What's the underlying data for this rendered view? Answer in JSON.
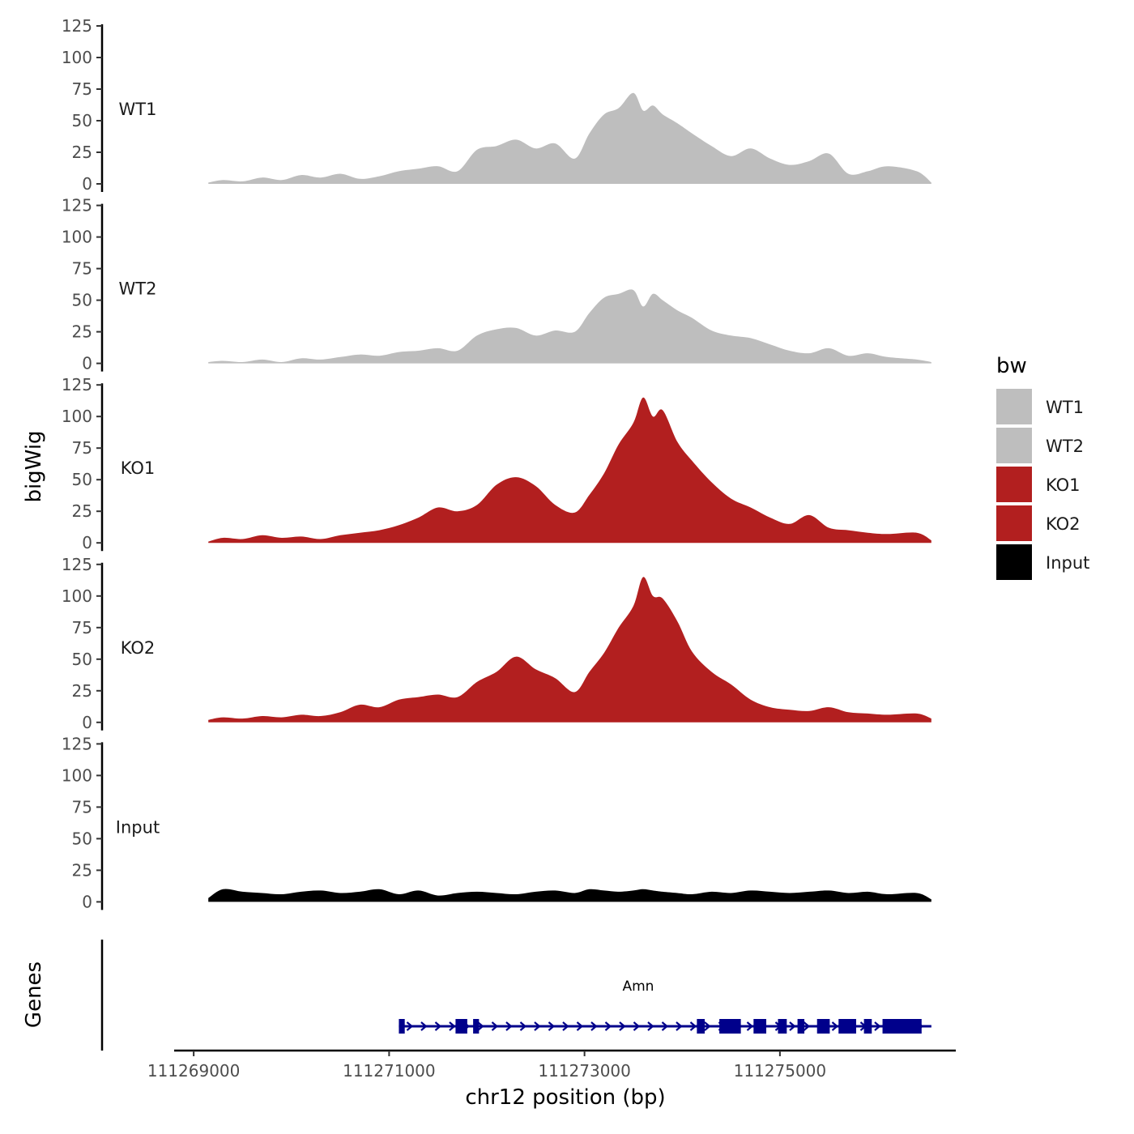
{
  "chart_data": {
    "type": "area",
    "ylabel": "bigWig",
    "xlabel": "chr12 position (bp)",
    "genes_label": "Genes",
    "ylim": [
      0,
      125
    ],
    "y_ticks": [
      0,
      25,
      50,
      75,
      100,
      125
    ],
    "y_tick_labels": [
      "0",
      "25",
      "50",
      "75",
      "100",
      "125"
    ],
    "xlim": [
      111268800,
      111276800
    ],
    "x_ticks": [
      111269000,
      111271000,
      111273000,
      111275000
    ],
    "x_tick_labels": [
      "111269000",
      "111271000",
      "111273000",
      "111275000"
    ],
    "legend": {
      "title": "bw",
      "entries": [
        {
          "label": "WT1",
          "color": "#bebebe"
        },
        {
          "label": "WT2",
          "color": "#bebebe"
        },
        {
          "label": "KO1",
          "color": "#b21f1f"
        },
        {
          "label": "KO2",
          "color": "#b21f1f"
        },
        {
          "label": "Input",
          "color": "#000000"
        }
      ]
    },
    "series": [
      {
        "name": "WT1",
        "color": "#bebebe",
        "x": [
          111269150,
          111269300,
          111269500,
          111269700,
          111269900,
          111270100,
          111270300,
          111270500,
          111270700,
          111270900,
          111271100,
          111271300,
          111271500,
          111271700,
          111271900,
          111272100,
          111272300,
          111272500,
          111272700,
          111272900,
          111273050,
          111273200,
          111273350,
          111273500,
          111273600,
          111273700,
          111273800,
          111273950,
          111274100,
          111274300,
          111274500,
          111274700,
          111274900,
          111275100,
          111275300,
          111275500,
          111275700,
          111275900,
          111276100,
          111276400,
          111276550
        ],
        "values": [
          1,
          3,
          2,
          5,
          3,
          7,
          5,
          8,
          4,
          6,
          10,
          12,
          14,
          10,
          27,
          30,
          35,
          28,
          32,
          20,
          40,
          55,
          60,
          72,
          58,
          62,
          55,
          48,
          40,
          30,
          22,
          28,
          20,
          15,
          18,
          24,
          8,
          10,
          14,
          10,
          1
        ]
      },
      {
        "name": "WT2",
        "color": "#bebebe",
        "x": [
          111269150,
          111269300,
          111269500,
          111269700,
          111269900,
          111270100,
          111270300,
          111270500,
          111270700,
          111270900,
          111271100,
          111271300,
          111271500,
          111271700,
          111271900,
          111272100,
          111272300,
          111272500,
          111272700,
          111272900,
          111273050,
          111273200,
          111273350,
          111273500,
          111273600,
          111273700,
          111273800,
          111273950,
          111274100,
          111274300,
          111274500,
          111274700,
          111274900,
          111275100,
          111275300,
          111275500,
          111275700,
          111275900,
          111276100,
          111276400,
          111276550
        ],
        "values": [
          1,
          2,
          1,
          3,
          1,
          4,
          3,
          5,
          7,
          6,
          9,
          10,
          12,
          10,
          22,
          27,
          28,
          22,
          26,
          25,
          40,
          52,
          55,
          58,
          45,
          55,
          50,
          42,
          36,
          26,
          22,
          20,
          15,
          10,
          8,
          12,
          6,
          8,
          5,
          3,
          1
        ]
      },
      {
        "name": "KO1",
        "color": "#b21f1f",
        "x": [
          111269150,
          111269300,
          111269500,
          111269700,
          111269900,
          111270100,
          111270300,
          111270500,
          111270700,
          111270900,
          111271100,
          111271300,
          111271500,
          111271700,
          111271900,
          111272100,
          111272300,
          111272500,
          111272700,
          111272900,
          111273050,
          111273200,
          111273350,
          111273500,
          111273600,
          111273700,
          111273800,
          111273950,
          111274100,
          111274300,
          111274500,
          111274700,
          111274900,
          111275100,
          111275300,
          111275500,
          111275700,
          111275900,
          111276100,
          111276400,
          111276550
        ],
        "values": [
          1,
          4,
          3,
          6,
          4,
          5,
          3,
          6,
          8,
          10,
          14,
          20,
          28,
          25,
          30,
          46,
          52,
          45,
          30,
          24,
          38,
          55,
          78,
          95,
          115,
          100,
          105,
          80,
          65,
          48,
          35,
          28,
          20,
          15,
          22,
          12,
          10,
          8,
          7,
          8,
          2
        ]
      },
      {
        "name": "KO2",
        "color": "#b21f1f",
        "x": [
          111269150,
          111269300,
          111269500,
          111269700,
          111269900,
          111270100,
          111270300,
          111270500,
          111270700,
          111270900,
          111271100,
          111271300,
          111271500,
          111271700,
          111271900,
          111272100,
          111272300,
          111272500,
          111272700,
          111272900,
          111273050,
          111273200,
          111273350,
          111273500,
          111273600,
          111273700,
          111273800,
          111273950,
          111274100,
          111274300,
          111274500,
          111274700,
          111274900,
          111275100,
          111275300,
          111275500,
          111275700,
          111275900,
          111276100,
          111276400,
          111276550
        ],
        "values": [
          2,
          4,
          3,
          5,
          4,
          6,
          5,
          8,
          14,
          12,
          18,
          20,
          22,
          20,
          32,
          40,
          52,
          42,
          35,
          24,
          40,
          55,
          75,
          92,
          115,
          100,
          98,
          80,
          56,
          40,
          30,
          18,
          12,
          10,
          9,
          12,
          8,
          7,
          6,
          7,
          3
        ]
      },
      {
        "name": "Input",
        "color": "#000000",
        "x": [
          111269150,
          111269300,
          111269500,
          111269700,
          111269900,
          111270100,
          111270300,
          111270500,
          111270700,
          111270900,
          111271100,
          111271300,
          111271500,
          111271700,
          111271900,
          111272100,
          111272300,
          111272500,
          111272700,
          111272900,
          111273050,
          111273200,
          111273350,
          111273500,
          111273600,
          111273700,
          111273800,
          111273950,
          111274100,
          111274300,
          111274500,
          111274700,
          111274900,
          111275100,
          111275300,
          111275500,
          111275700,
          111275900,
          111276100,
          111276400,
          111276550
        ],
        "values": [
          3,
          10,
          8,
          7,
          6,
          8,
          9,
          7,
          8,
          10,
          6,
          9,
          5,
          7,
          8,
          7,
          6,
          8,
          9,
          7,
          10,
          9,
          8,
          9,
          10,
          9,
          8,
          7,
          6,
          8,
          7,
          9,
          8,
          7,
          8,
          9,
          7,
          8,
          6,
          7,
          2
        ]
      }
    ],
    "gene": {
      "name": "Amn",
      "strand": "+",
      "start": 111271100,
      "end": 111276550,
      "color": "#00008b",
      "exons": [
        [
          111271100,
          111271160
        ],
        [
          111271680,
          111271800
        ],
        [
          111271860,
          111271920
        ],
        [
          111274150,
          111274230
        ],
        [
          111274380,
          111274600
        ],
        [
          111274730,
          111274860
        ],
        [
          111274980,
          111275070
        ],
        [
          111275180,
          111275250
        ],
        [
          111275380,
          111275510
        ],
        [
          111275600,
          111275780
        ],
        [
          111275860,
          111275940
        ],
        [
          111276050,
          111276450
        ]
      ]
    }
  }
}
